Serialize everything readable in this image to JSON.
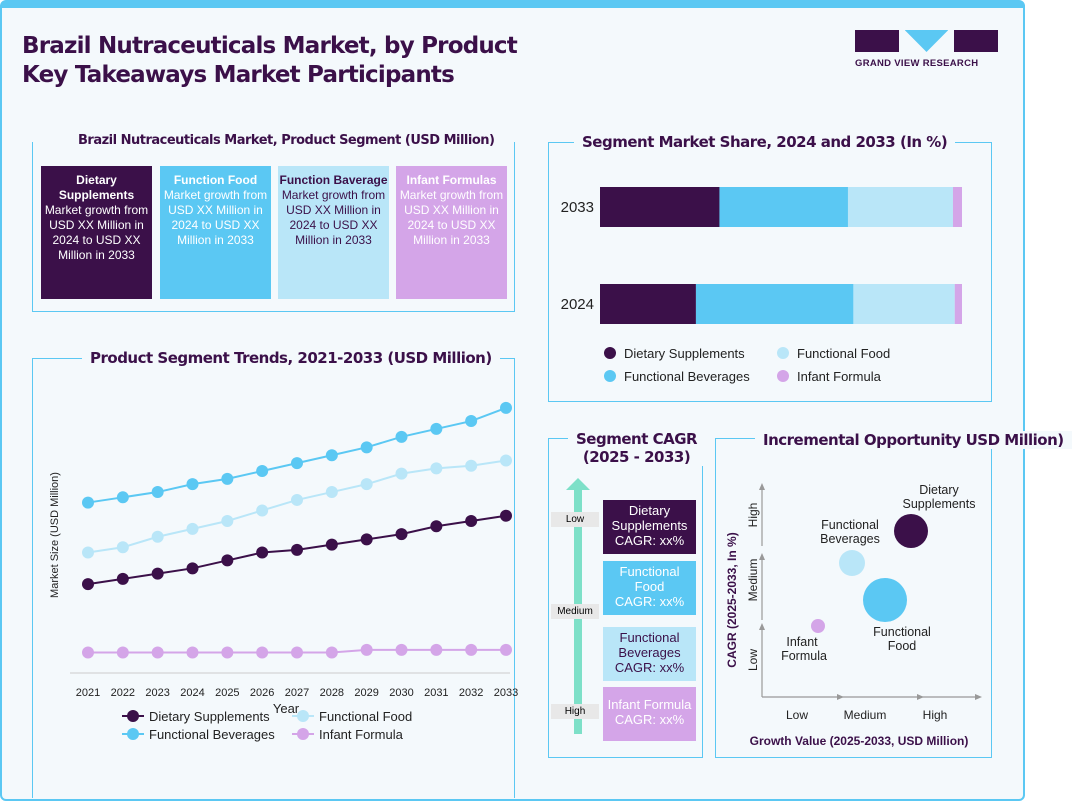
{
  "header": {
    "title_line1": "Brazil Nutraceuticals Market, by Product",
    "title_line2": "Key Takeaways Market Participants",
    "logo_text": "GRAND VIEW RESEARCH"
  },
  "colors": {
    "dietary": "#3b1049",
    "functional_beverages": "#5bc8f3",
    "functional_food": "#b9e6f8",
    "infant": "#d4a5e8"
  },
  "segments": {
    "title": "Brazil Nutraceuticals Market, Product Segment (USD Million)",
    "items": [
      {
        "name": "Dietary Supplements",
        "text": "Market growth from USD XX Million in 2024 to USD XX Million in 2033"
      },
      {
        "name": "Function Food",
        "text": "Market growth from USD XX Million in 2024 to USD XX Million in 2033"
      },
      {
        "name": "Function Baverage",
        "text": "Market growth from USD XX Million in 2024 to USD XX Million in 2033"
      },
      {
        "name": "Infant Formulas",
        "text": "Market growth from USD XX Million in 2024 to USD XX Million in 2033"
      }
    ]
  },
  "cagr": {
    "title_line1": "Segment CAGR",
    "title_line2": "(2025 - 2033)",
    "levels": [
      "Low",
      "Medium",
      "High"
    ],
    "items": [
      {
        "name": "Dietary Supplements",
        "value": "CAGR: xx%"
      },
      {
        "name": "Functional Food",
        "value": "CAGR: xx%"
      },
      {
        "name": "Functional Beverages",
        "value": "CAGR: xx%"
      },
      {
        "name": "Infant Formula",
        "value": "CAGR: xx%"
      }
    ]
  },
  "chart_data": [
    {
      "type": "line",
      "title": "Product Segment Trends, 2021-2033 (USD Million)",
      "xlabel": "Year",
      "ylabel": "Market Size (USD Million)",
      "legend_position": "bottom",
      "grid": false,
      "x": [
        2021,
        2022,
        2023,
        2024,
        2025,
        2026,
        2027,
        2028,
        2029,
        2030,
        2031,
        2032,
        2033
      ],
      "series": [
        {
          "name": "Dietary Supplements",
          "color": "#3b1049",
          "values": [
            30,
            32,
            34,
            36,
            39,
            42,
            43,
            45,
            47,
            49,
            52,
            54,
            56
          ]
        },
        {
          "name": "Functional Food",
          "color": "#b9e6f8",
          "values": [
            42,
            44,
            48,
            51,
            54,
            58,
            62,
            65,
            68,
            72,
            74,
            75,
            77
          ]
        },
        {
          "name": "Functional Beverages",
          "color": "#5bc8f3",
          "values": [
            61,
            63,
            65,
            68,
            70,
            73,
            76,
            79,
            82,
            86,
            89,
            92,
            97
          ]
        },
        {
          "name": "Infant Formula",
          "color": "#d4a5e8",
          "values": [
            4,
            4,
            4,
            4,
            4,
            4,
            4,
            4,
            5,
            5,
            5,
            5,
            5
          ]
        }
      ]
    },
    {
      "type": "bar",
      "stacked": true,
      "orientation": "horizontal",
      "title": "Segment Market Share, 2024 and 2033 (In %)",
      "legend_position": "bottom",
      "categories": [
        "2033",
        "2024"
      ],
      "series": [
        {
          "name": "Dietary Supplements",
          "color": "#3b1049",
          "values": [
            33,
            26.5
          ]
        },
        {
          "name": "Functional Beverages",
          "color": "#5bc8f3",
          "values": [
            35.5,
            43.5
          ]
        },
        {
          "name": "Functional Food",
          "color": "#b9e6f8",
          "values": [
            29,
            28
          ]
        },
        {
          "name": "Infant Formula",
          "color": "#d4a5e8",
          "values": [
            2.5,
            2
          ]
        }
      ]
    },
    {
      "type": "scatter",
      "title": "Incremental Opportunity USD Million)",
      "xlabel": "Growth Value (2025-2033, USD Million)",
      "ylabel": "CAGR (2025-2033, In %)",
      "x_ticks": [
        "Low",
        "Medium",
        "High"
      ],
      "y_ticks": [
        "Low",
        "Medium",
        "High"
      ],
      "points": [
        {
          "name": "Dietary Supplements",
          "x": "High",
          "y": "High",
          "size": "medium",
          "color": "#3b1049"
        },
        {
          "name": "Functional Beverages",
          "x": "Medium",
          "y": "Medium",
          "size": "small",
          "color": "#b9e6f8"
        },
        {
          "name": "Functional Food",
          "x": "Medium-High",
          "y": "Medium",
          "size": "large",
          "color": "#5bc8f3"
        },
        {
          "name": "Infant Formula",
          "x": "Low",
          "y": "Low",
          "size": "tiny",
          "color": "#d4a5e8"
        }
      ]
    }
  ]
}
